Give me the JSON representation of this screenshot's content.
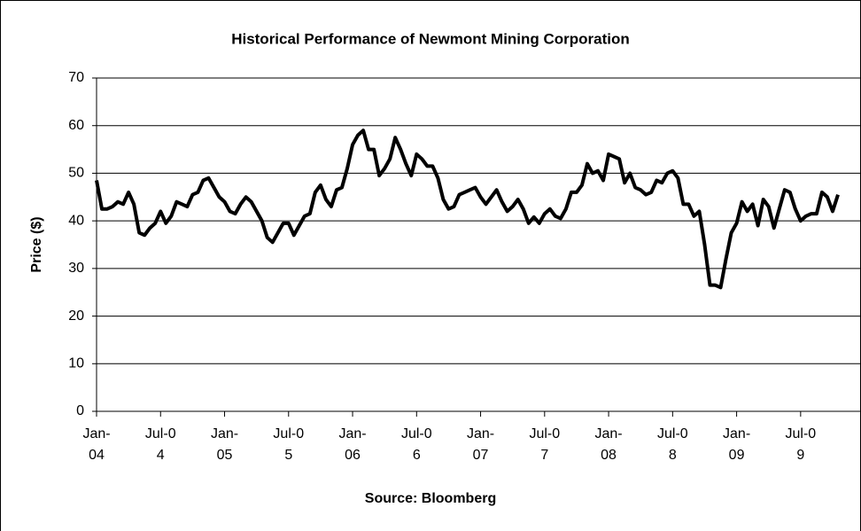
{
  "chart_data": {
    "type": "line",
    "title": "Historical Performance of Newmont Mining Corporation",
    "xlabel": "Source: Bloomberg",
    "ylabel": "Price ($)",
    "categories": [
      "Jan-04",
      null,
      null,
      null,
      null,
      null,
      null,
      null,
      null,
      null,
      null,
      null,
      "Jul-04",
      null,
      null,
      null,
      null,
      null,
      null,
      null,
      null,
      null,
      null,
      null,
      "Jan-05",
      null,
      null,
      null,
      null,
      null,
      null,
      null,
      null,
      null,
      null,
      null,
      "Jul-05",
      null,
      null,
      null,
      null,
      null,
      null,
      null,
      null,
      null,
      null,
      null,
      "Jan-06",
      null,
      null,
      null,
      null,
      null,
      null,
      null,
      null,
      null,
      null,
      null,
      "Jul-06",
      null,
      null,
      null,
      null,
      null,
      null,
      null,
      null,
      null,
      null,
      null,
      "Jan-07",
      null,
      null,
      null,
      null,
      null,
      null,
      null,
      null,
      null,
      null,
      null,
      "Jul-07",
      null,
      null,
      null,
      null,
      null,
      null,
      null,
      null,
      null,
      null,
      null,
      "Jan-08",
      null,
      null,
      null,
      null,
      null,
      null,
      null,
      null,
      null,
      null,
      null,
      "Jul-08",
      null,
      null,
      null,
      null,
      null,
      null,
      null,
      null,
      null,
      null,
      null,
      "Jan-09",
      null,
      null,
      null,
      null,
      null,
      null,
      null,
      null,
      null,
      null,
      null,
      "Jul-09",
      null,
      null,
      null,
      null,
      null,
      null,
      null
    ],
    "values": [
      48.5,
      42.5,
      42.5,
      43,
      44,
      43.5,
      46,
      43.5,
      37.5,
      37,
      38.5,
      39.5,
      42,
      39.5,
      41,
      44,
      43.5,
      43,
      45.5,
      46,
      48.5,
      49,
      47,
      45,
      44,
      42,
      41.5,
      43.5,
      45,
      44,
      42,
      40,
      36.5,
      35.5,
      37.5,
      39.5,
      39.5,
      37,
      39,
      41,
      41.5,
      46,
      47.5,
      44.5,
      43,
      46.5,
      47,
      51,
      56,
      58,
      59,
      55,
      55,
      49.5,
      51,
      53,
      57.5,
      55,
      52,
      49.5,
      54,
      53,
      51.5,
      51.5,
      49,
      44.5,
      42.5,
      43,
      45.5,
      46,
      46.5,
      47,
      45,
      43.5,
      45,
      46.5,
      44,
      42,
      43,
      44.5,
      42.5,
      39.5,
      40.8,
      39.5,
      41.5,
      42.5,
      41,
      40.5,
      42.5,
      46,
      46,
      47.5,
      52,
      50,
      50.5,
      48.5,
      54,
      53.5,
      53,
      48,
      50,
      47,
      46.5,
      45.5,
      46,
      48.5,
      48,
      50,
      50.5,
      49,
      43.5,
      43.5,
      41,
      42,
      35,
      26.5,
      26.5,
      26,
      32,
      37.5,
      39.5,
      44,
      42,
      43.5,
      39,
      44.5,
      43,
      38.5,
      42.5,
      46.5,
      46,
      42.5,
      40,
      41,
      41.5,
      41.5,
      46,
      45,
      42,
      45.5
    ],
    "color": "#000000",
    "ylim": [
      0,
      70
    ],
    "yticks": [
      0,
      10,
      20,
      30,
      40,
      50,
      60,
      70
    ],
    "grid": true
  }
}
